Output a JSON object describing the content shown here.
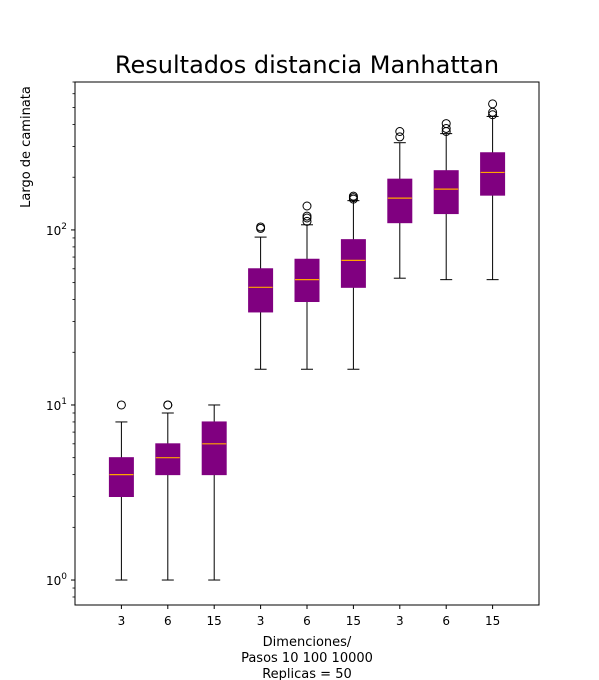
{
  "chart_data": {
    "type": "box",
    "title": "Resultados distancia Manhattan",
    "ylabel": "Largo de caminata",
    "xlabel_lines": [
      "Dimenciones/",
      "Pasos 10 100 10000",
      "Replicas = 50"
    ],
    "yscale": "log",
    "ylim": [
      0.72,
      700
    ],
    "y_ticks": [
      {
        "value": 1,
        "base": "10",
        "exp": "0"
      },
      {
        "value": 10,
        "base": "10",
        "exp": "1"
      },
      {
        "value": 100,
        "base": "10",
        "exp": "2"
      }
    ],
    "categories": [
      "3",
      "6",
      "15",
      "3",
      "6",
      "15",
      "3",
      "6",
      "15"
    ],
    "box_color": "#800080",
    "median_color": "#ffa500",
    "boxes": [
      {
        "label": "3",
        "whisker_low": 1,
        "q1": 3,
        "median": 4,
        "q3": 5,
        "whisker_high": 8,
        "outliers": [
          10
        ]
      },
      {
        "label": "6",
        "whisker_low": 1,
        "q1": 4,
        "median": 5,
        "q3": 6,
        "whisker_high": 9,
        "outliers": [
          10,
          10
        ]
      },
      {
        "label": "15",
        "whisker_low": 1,
        "q1": 4,
        "median": 6,
        "q3": 8,
        "whisker_high": 10,
        "outliers": []
      },
      {
        "label": "3",
        "whisker_low": 16,
        "q1": 34,
        "median": 47,
        "q3": 60,
        "whisker_high": 91,
        "outliers": [
          102,
          104
        ]
      },
      {
        "label": "6",
        "whisker_low": 16,
        "q1": 39,
        "median": 52,
        "q3": 68,
        "whisker_high": 107,
        "outliers": [
          112,
          117,
          120,
          137
        ]
      },
      {
        "label": "15",
        "whisker_low": 16,
        "q1": 47,
        "median": 67,
        "q3": 88,
        "whisker_high": 147,
        "outliers": [
          150,
          153,
          156
        ]
      },
      {
        "label": "3",
        "whisker_low": 53,
        "q1": 110,
        "median": 152,
        "q3": 195,
        "whisker_high": 315,
        "outliers": [
          340,
          365
        ]
      },
      {
        "label": "6",
        "whisker_low": 52,
        "q1": 124,
        "median": 171,
        "q3": 218,
        "whisker_high": 355,
        "outliers": [
          365,
          380,
          405
        ]
      },
      {
        "label": "15",
        "whisker_low": 52,
        "q1": 158,
        "median": 213,
        "q3": 276,
        "whisker_high": 445,
        "outliers": [
          455,
          470,
          525
        ]
      }
    ]
  }
}
